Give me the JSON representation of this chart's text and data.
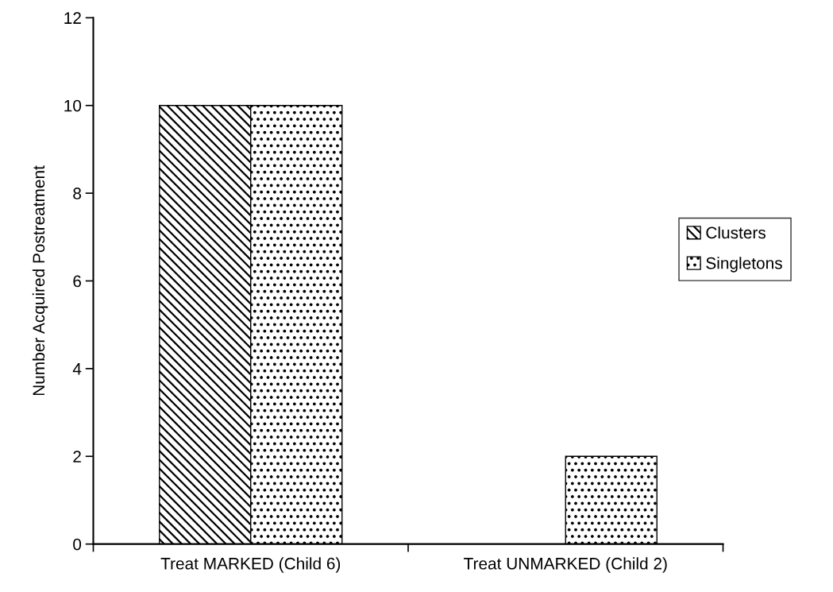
{
  "chart_data": {
    "type": "bar",
    "ylabel": "Number Acquired Postreatment",
    "categories": [
      "Treat MARKED (Child 6)",
      "Treat UNMARKED (Child 2)"
    ],
    "series": [
      {
        "name": "Clusters",
        "color": "#000000",
        "values": [
          10,
          0
        ]
      },
      {
        "name": "Singletons",
        "color": "#000000",
        "values": [
          10,
          2
        ]
      }
    ],
    "ylim": [
      0,
      12
    ],
    "yticks": [
      0,
      2,
      4,
      6,
      8,
      10,
      12
    ],
    "grid": false,
    "legend": "right"
  }
}
